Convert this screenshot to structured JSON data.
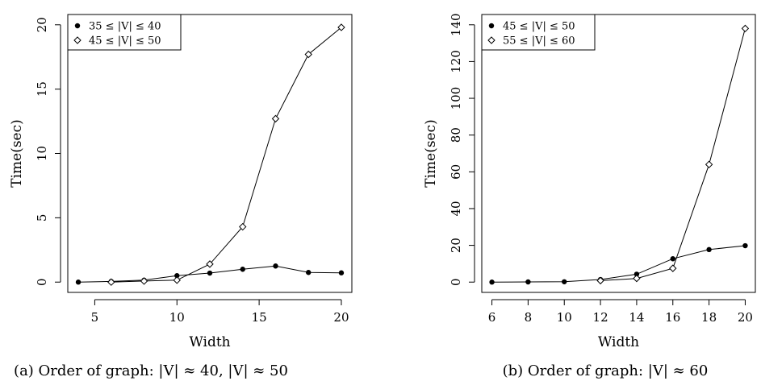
{
  "chart_data": [
    {
      "type": "line",
      "caption": "(a) Order of graph: |V| ≈ 40, |V| ≈ 50",
      "xlabel": "Width",
      "ylabel": "Time(sec)",
      "xlim": [
        4,
        20
      ],
      "ylim": [
        0,
        20
      ],
      "xticks": [
        "5",
        "10",
        "15",
        "20"
      ],
      "yticks": [
        "0",
        "5",
        "10",
        "15",
        "20"
      ],
      "legend_position": "top-left",
      "series": [
        {
          "name": "35 ≤ |V| ≤ 40",
          "marker": "filled-circle",
          "x": [
            4,
            6,
            8,
            10,
            12,
            14,
            16,
            18,
            20
          ],
          "y": [
            0.0,
            0.05,
            0.15,
            0.5,
            0.7,
            1.0,
            1.25,
            0.75,
            0.72
          ]
        },
        {
          "name": "45 ≤ |V| ≤ 50",
          "marker": "open-diamond",
          "x": [
            6,
            8,
            10,
            12,
            14,
            16,
            18,
            20
          ],
          "y": [
            0.0,
            0.08,
            0.15,
            1.4,
            4.3,
            12.7,
            17.7,
            19.8
          ]
        }
      ]
    },
    {
      "type": "line",
      "caption": "(b) Order of graph: |V| ≈ 60",
      "xlabel": "Width",
      "ylabel": "Time(sec)",
      "xlim": [
        6,
        20
      ],
      "ylim": [
        0,
        140
      ],
      "xticks": [
        "6",
        "8",
        "10",
        "12",
        "14",
        "16",
        "18",
        "20"
      ],
      "yticks": [
        "0",
        "20",
        "40",
        "60",
        "80",
        "100",
        "120",
        "140"
      ],
      "legend_position": "top-left",
      "series": [
        {
          "name": "45 ≤ |V| ≤ 50",
          "marker": "filled-circle",
          "x": [
            6,
            8,
            10,
            12,
            14,
            16,
            18,
            20
          ],
          "y": [
            0.0,
            0.1,
            0.2,
            1.4,
            4.3,
            12.7,
            17.7,
            19.8
          ]
        },
        {
          "name": "55 ≤ |V| ≤ 60",
          "marker": "open-diamond",
          "x": [
            12,
            14,
            16,
            18,
            20
          ],
          "y": [
            0.8,
            2.0,
            7.5,
            64.0,
            138.0
          ]
        }
      ]
    }
  ]
}
